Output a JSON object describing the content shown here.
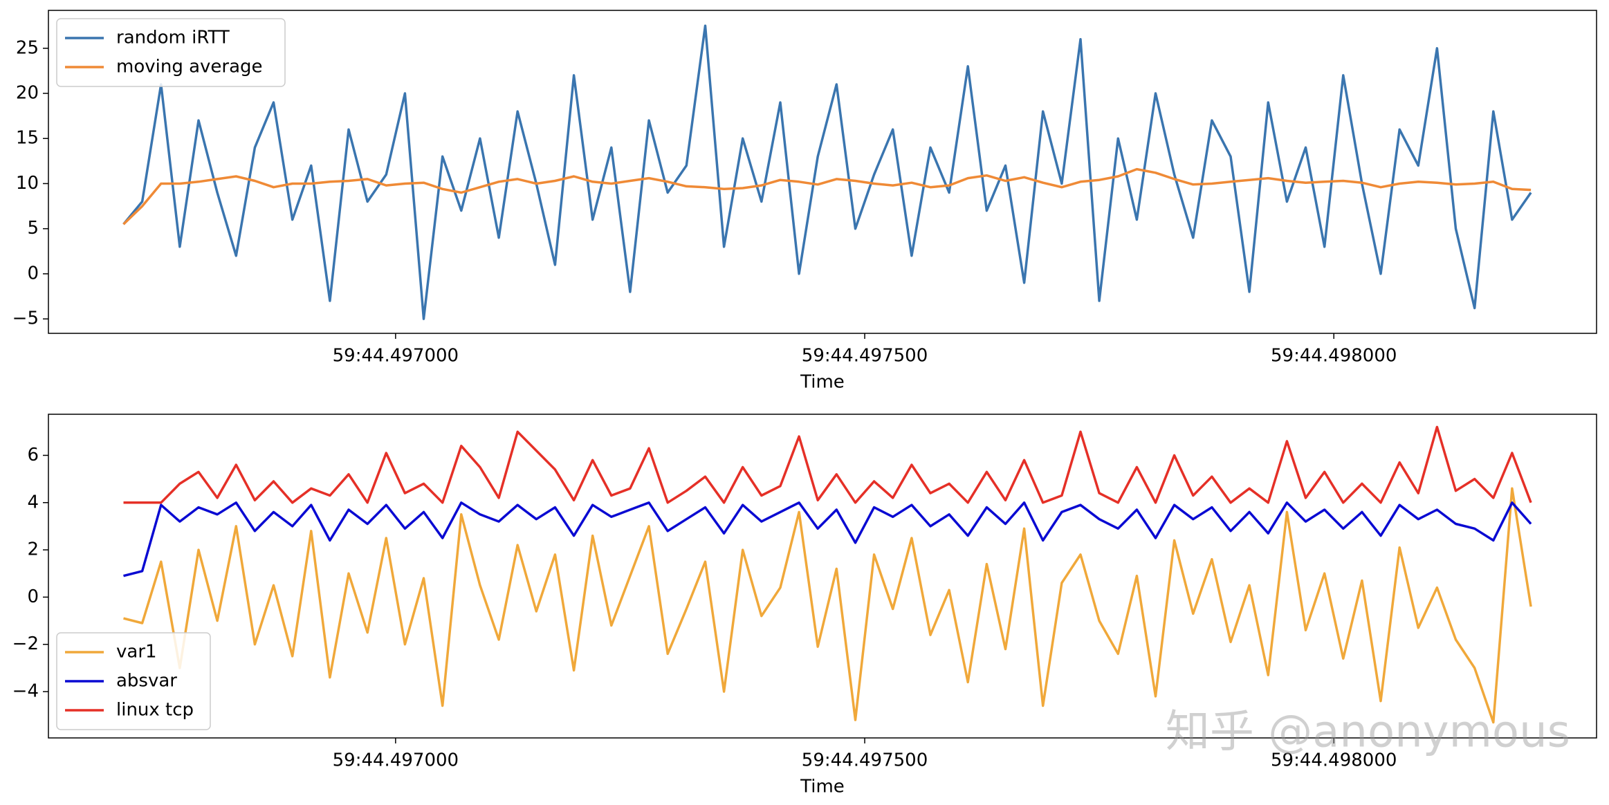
{
  "chart_data": [
    {
      "type": "line",
      "xlabel": "Time",
      "legend": "upper left",
      "x": [
        44.49671,
        44.49673,
        44.49675,
        44.49677,
        44.49679,
        44.49681,
        44.49683,
        44.49685,
        44.49687,
        44.49689,
        44.49691,
        44.49693,
        44.49695,
        44.49697,
        44.49699,
        44.49701,
        44.49703,
        44.49705,
        44.49707,
        44.49709,
        44.49711,
        44.49713,
        44.49715,
        44.49717,
        44.49719,
        44.49721,
        44.49723,
        44.49725,
        44.49727,
        44.49729,
        44.49731,
        44.49733,
        44.49735,
        44.49737,
        44.49739,
        44.49741,
        44.49743,
        44.49745,
        44.49747,
        44.49749,
        44.49751,
        44.49753,
        44.49755,
        44.49757,
        44.49759,
        44.49761,
        44.49763,
        44.49765,
        44.49767,
        44.49769,
        44.49771,
        44.49773,
        44.49775,
        44.49777,
        44.49779,
        44.49781,
        44.49783,
        44.49785,
        44.49787,
        44.49789,
        44.49791,
        44.49793,
        44.49795,
        44.49797,
        44.49799,
        44.49801,
        44.49803,
        44.49805,
        44.49807,
        44.49809,
        44.49811,
        44.49813,
        44.49815,
        44.49817,
        44.49819,
        44.49821
      ],
      "xlim": [
        44.49663,
        44.49828
      ],
      "xticks": [
        {
          "value": 44.497,
          "label": "59:44.497000"
        },
        {
          "value": 44.4975,
          "label": "59:44.497500"
        },
        {
          "value": 44.498,
          "label": "59:44.498000"
        }
      ],
      "ylim": [
        -6.6,
        29.2
      ],
      "yticks": [
        {
          "value": -5,
          "label": "−5"
        },
        0,
        5,
        10,
        15,
        20,
        25
      ],
      "series": [
        {
          "name": "random iRTT",
          "color": "#3a75af",
          "values": [
            5.5,
            8,
            21,
            3,
            17,
            9,
            2,
            14,
            19,
            6,
            12,
            -3,
            16,
            8,
            11,
            20,
            -5,
            13,
            7,
            15,
            4,
            18,
            10,
            1,
            22,
            6,
            14,
            -2,
            17,
            9,
            12,
            27.5,
            3,
            15,
            8,
            19,
            0,
            13,
            21,
            5,
            11,
            16,
            2,
            14,
            9,
            23,
            7,
            12,
            -1,
            18,
            10,
            26,
            -3,
            15,
            6,
            20,
            11,
            4,
            17,
            13,
            -2,
            19,
            8,
            14,
            3,
            22,
            10,
            0,
            16,
            12,
            25,
            5,
            -3.8,
            18,
            6,
            9
          ]
        },
        {
          "name": "moving average",
          "color": "#ef8a36",
          "values": [
            5.5,
            7.5,
            10,
            10,
            10.2,
            10.5,
            10.8,
            10.3,
            9.6,
            10,
            10,
            10.2,
            10.3,
            10.5,
            9.8,
            10,
            10.1,
            9.4,
            9,
            9.6,
            10.2,
            10.5,
            10,
            10.3,
            10.8,
            10.2,
            10,
            10.3,
            10.6,
            10.2,
            9.7,
            9.6,
            9.4,
            9.5,
            9.8,
            10.4,
            10.2,
            9.9,
            10.5,
            10.3,
            10,
            9.8,
            10.1,
            9.6,
            9.8,
            10.6,
            10.9,
            10.3,
            10.7,
            10.1,
            9.6,
            10.2,
            10.4,
            10.8,
            11.6,
            11.2,
            10.5,
            9.9,
            10,
            10.2,
            10.4,
            10.6,
            10.3,
            10.1,
            10.2,
            10.3,
            10.1,
            9.6,
            10,
            10.2,
            10.1,
            9.9,
            10,
            10.2,
            9.4,
            9.3
          ]
        }
      ]
    },
    {
      "type": "line",
      "xlabel": "Time",
      "legend": "lower left",
      "x": [
        44.49671,
        44.49673,
        44.49675,
        44.49677,
        44.49679,
        44.49681,
        44.49683,
        44.49685,
        44.49687,
        44.49689,
        44.49691,
        44.49693,
        44.49695,
        44.49697,
        44.49699,
        44.49701,
        44.49703,
        44.49705,
        44.49707,
        44.49709,
        44.49711,
        44.49713,
        44.49715,
        44.49717,
        44.49719,
        44.49721,
        44.49723,
        44.49725,
        44.49727,
        44.49729,
        44.49731,
        44.49733,
        44.49735,
        44.49737,
        44.49739,
        44.49741,
        44.49743,
        44.49745,
        44.49747,
        44.49749,
        44.49751,
        44.49753,
        44.49755,
        44.49757,
        44.49759,
        44.49761,
        44.49763,
        44.49765,
        44.49767,
        44.49769,
        44.49771,
        44.49773,
        44.49775,
        44.49777,
        44.49779,
        44.49781,
        44.49783,
        44.49785,
        44.49787,
        44.49789,
        44.49791,
        44.49793,
        44.49795,
        44.49797,
        44.49799,
        44.49801,
        44.49803,
        44.49805,
        44.49807,
        44.49809,
        44.49811,
        44.49813,
        44.49815,
        44.49817,
        44.49819,
        44.49821
      ],
      "xlim": [
        44.49663,
        44.49828
      ],
      "xticks": [
        {
          "value": 44.497,
          "label": "59:44.497000"
        },
        {
          "value": 44.4975,
          "label": "59:44.497500"
        },
        {
          "value": 44.498,
          "label": "59:44.498000"
        }
      ],
      "ylim": [
        -5.96,
        7.74
      ],
      "yticks": [
        {
          "value": -4,
          "label": "−4"
        },
        {
          "value": -2,
          "label": "−2"
        },
        0,
        2,
        4,
        6
      ],
      "series": [
        {
          "name": "var1",
          "color": "#f0a83a",
          "values": [
            -0.9,
            -1.1,
            1.5,
            -3,
            2,
            -1,
            3,
            -2,
            0.5,
            -2.5,
            2.8,
            -3.4,
            1,
            -1.5,
            2.5,
            -2,
            0.8,
            -4.6,
            3.5,
            0.5,
            -1.8,
            2.2,
            -0.6,
            1.8,
            -3.1,
            2.6,
            -1.2,
            0.9,
            3,
            -2.4,
            -0.5,
            1.5,
            -4,
            2,
            -0.8,
            0.4,
            3.6,
            -2.1,
            1.2,
            -5.2,
            1.8,
            -0.5,
            2.5,
            -1.6,
            0.3,
            -3.6,
            1.4,
            -2.2,
            2.9,
            -4.6,
            0.6,
            1.8,
            -1,
            -2.4,
            0.9,
            -4.2,
            2.4,
            -0.7,
            1.6,
            -1.9,
            0.5,
            -3.3,
            3.6,
            -1.4,
            1,
            -2.6,
            0.7,
            -4.4,
            2.1,
            -1.3,
            0.4,
            -1.8,
            -3,
            -5.3,
            4.6,
            -0.4
          ]
        },
        {
          "name": "absvar",
          "color": "#0a0ad2",
          "values": [
            0.9,
            1.1,
            3.9,
            3.2,
            3.8,
            3.5,
            4,
            2.8,
            3.6,
            3,
            3.9,
            2.4,
            3.7,
            3.1,
            3.9,
            2.9,
            3.6,
            2.5,
            4,
            3.5,
            3.2,
            3.9,
            3.3,
            3.8,
            2.6,
            3.9,
            3.4,
            3.7,
            4,
            2.8,
            3.3,
            3.8,
            2.7,
            3.9,
            3.2,
            3.6,
            4,
            2.9,
            3.7,
            2.3,
            3.8,
            3.4,
            3.9,
            3,
            3.5,
            2.6,
            3.8,
            3.1,
            4,
            2.4,
            3.6,
            3.9,
            3.3,
            2.9,
            3.7,
            2.5,
            3.9,
            3.3,
            3.8,
            2.8,
            3.6,
            2.7,
            4,
            3.2,
            3.7,
            2.9,
            3.6,
            2.6,
            3.9,
            3.3,
            3.7,
            3.1,
            2.9,
            2.4,
            4,
            3.1
          ]
        },
        {
          "name": "linux tcp",
          "color": "#e53027",
          "values": [
            4,
            4,
            4,
            4.8,
            5.3,
            4.2,
            5.6,
            4.1,
            4.9,
            4,
            4.6,
            4.3,
            5.2,
            4,
            6.1,
            4.4,
            4.8,
            4,
            6.4,
            5.5,
            4.2,
            7,
            6.2,
            5.4,
            4.1,
            5.8,
            4.3,
            4.6,
            6.3,
            4,
            4.5,
            5.1,
            4,
            5.5,
            4.3,
            4.7,
            6.8,
            4.1,
            5.2,
            4,
            4.9,
            4.2,
            5.6,
            4.4,
            4.8,
            4,
            5.3,
            4.1,
            5.8,
            4,
            4.3,
            7,
            4.4,
            4,
            5.5,
            4,
            6,
            4.3,
            5.1,
            4,
            4.6,
            4,
            6.6,
            4.2,
            5.3,
            4,
            4.8,
            4,
            5.7,
            4.4,
            7.2,
            4.5,
            5,
            4.2,
            6.1,
            4
          ]
        }
      ]
    }
  ],
  "watermark": "知乎 @anonymous"
}
